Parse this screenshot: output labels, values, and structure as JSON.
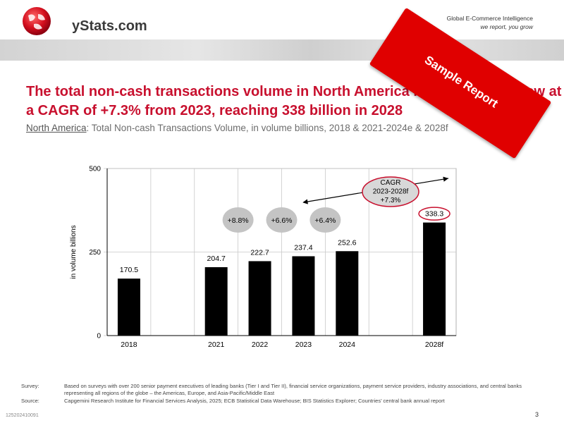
{
  "header": {
    "logo_text": "yStats.com",
    "tagline_1": "Global E-Commerce Intelligence",
    "tagline_2": "we report, you grow"
  },
  "title": "The total non-cash transactions volume in North America is expected to grow at a CAGR of +7.3% from 2023, reaching 338 billion in 2028",
  "subtitle": {
    "region": "North America",
    "text": ": Total Non-cash Transactions Volume, in volume billions, 2018 & 2021-2024e & 2028f"
  },
  "stamp": {
    "label": "Sample Report",
    "color": "#e00000"
  },
  "chart_data": {
    "type": "bar",
    "categories": [
      "2018",
      "",
      "2021",
      "2022",
      "2023",
      "2024",
      "",
      "2028f"
    ],
    "values": [
      170.5,
      null,
      204.7,
      222.7,
      237.4,
      252.6,
      null,
      338.3
    ],
    "value_labels": [
      "170.5",
      "",
      "204.7",
      "222.7",
      "237.4",
      "252.6",
      "",
      "338.3"
    ],
    "ylabel": "in volume billions",
    "ylim": [
      0,
      500
    ],
    "yticks": [
      "0",
      "250",
      "500"
    ],
    "grid": true,
    "bar_color": "#000000",
    "growth_bubbles": [
      "+8.8%",
      "+6.6%",
      "+6.4%"
    ],
    "cagr_annotation": [
      "CAGR",
      "2023-2028f",
      "+7.3%"
    ],
    "accent_color": "#c8102e"
  },
  "footer": {
    "survey_label": "Survey:",
    "survey_text": "Based on surveys with over 200 senior payment executives of leading banks (Tier I and Tier II), financial service organizations, payment service providers, industry associations, and central banks representing all regions of the globe – the Americas, Europe, and Asia-Pacific/Middle East",
    "source_label": "Source:",
    "source_text": "Capgemini Research Institute for Financial Services Analysis, 2025; ECB Statistical Data Warehouse; BIS Statistics Explorer; Countries’ central bank annual report",
    "code": "125202410091",
    "page": "3"
  }
}
